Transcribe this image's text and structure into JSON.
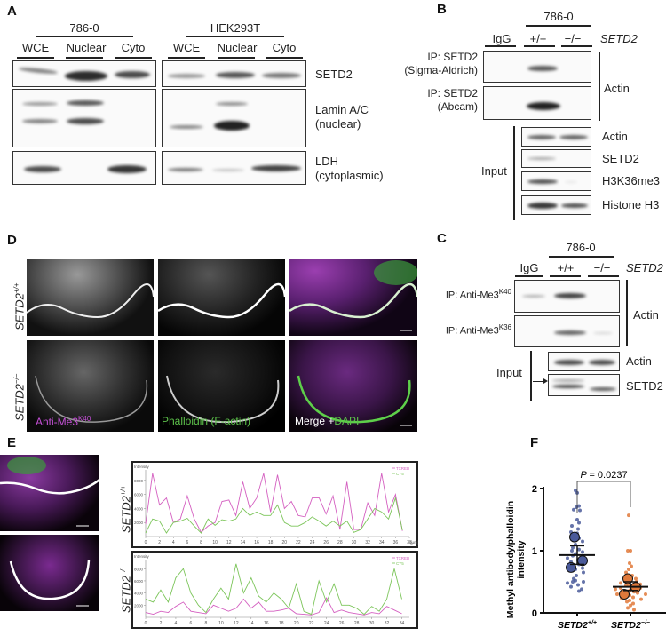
{
  "panelA": {
    "label": "A",
    "groups": [
      "786-0",
      "HEK293T"
    ],
    "lanes": [
      "WCE",
      "Nuclear",
      "Cyto"
    ],
    "rows": [
      {
        "l1": "SETD2",
        "l2": ""
      },
      {
        "l1": "Lamin A/C",
        "l2": "(nuclear)"
      },
      {
        "l1": "LDH",
        "l2": "(cytoplasmic)"
      }
    ]
  },
  "panelB": {
    "label": "B",
    "cell_line": "786-0",
    "lanes": [
      "IgG",
      "+/+",
      "−/−"
    ],
    "gene": "SETD2",
    "ip_rows": [
      {
        "l1": "IP: SETD2",
        "l2": "(Sigma-Aldrich)"
      },
      {
        "l1": "IP: SETD2",
        "l2": "(Abcam)"
      }
    ],
    "ip_blot": "Actin",
    "input_label": "Input",
    "input_rows": [
      "Actin",
      "SETD2",
      "H3K36me3",
      "Histone H3"
    ]
  },
  "panelC": {
    "label": "C",
    "cell_line": "786-0",
    "lanes": [
      "IgG",
      "+/+",
      "−/−"
    ],
    "gene": "SETD2",
    "ip_rows": [
      {
        "text": "IP: Anti-Me3",
        "sup": "K40"
      },
      {
        "text": "IP: Anti-Me3",
        "sup": "K36"
      }
    ],
    "ip_blot": "Actin",
    "input_label": "Input",
    "input_rows": [
      "Actin",
      "SETD2"
    ]
  },
  "panelD": {
    "label": "D",
    "rows": [
      {
        "gene": "SETD2",
        "genotype": "+/+"
      },
      {
        "gene": "SETD2",
        "genotype": "−/−"
      }
    ],
    "captions": {
      "methyl": {
        "text": "Anti-Me3",
        "sup": "K40",
        "color": "#c44fd6"
      },
      "phalloidin": {
        "text": "Phalloidin (F-actin)",
        "color": "#5cc04a"
      },
      "merge": {
        "text": "Merge +",
        "dapi": "DAPI",
        "dapi_color": "#5cc04a"
      }
    }
  },
  "panelE": {
    "label": "E",
    "rows": [
      {
        "gene": "SETD2",
        "genotype": "+/+"
      },
      {
        "gene": "SETD2",
        "genotype": "−/−"
      }
    ]
  },
  "panelF": {
    "label": "F"
  },
  "chart_data": [
    {
      "id": "E-top",
      "type": "line",
      "ylabel": "Intensity",
      "xunit": "(µm)",
      "xlim": [
        0,
        38
      ],
      "ylim": [
        0,
        9500
      ],
      "xticks": [
        0,
        2,
        4,
        6,
        8,
        10,
        12,
        14,
        16,
        18,
        20,
        22,
        24,
        26,
        28,
        30,
        32,
        34,
        36,
        38
      ],
      "yticks": [
        2000,
        4000,
        6000,
        8000
      ],
      "legend_position": "top-right",
      "x": [
        0,
        1,
        2,
        3,
        4,
        5,
        6,
        7,
        8,
        9,
        10,
        11,
        12,
        13,
        14,
        15,
        16,
        17,
        18,
        19,
        20,
        21,
        22,
        23,
        24,
        25,
        26,
        27,
        28,
        29,
        30,
        31,
        32,
        33,
        34,
        35,
        36,
        37
      ],
      "series": [
        {
          "name": "TXRED",
          "color": "#d45fc0",
          "values": [
            1800,
            9000,
            4500,
            5500,
            2000,
            2500,
            5800,
            2500,
            600,
            1500,
            2000,
            5000,
            5200,
            3000,
            7800,
            4000,
            5500,
            9000,
            3500,
            8800,
            4000,
            5000,
            3000,
            2800,
            5500,
            5500,
            3200,
            5800,
            1000,
            7800,
            1000,
            1000,
            4800,
            3000,
            9000,
            3500,
            6000,
            800
          ]
        },
        {
          "name": "CY5",
          "color": "#7cc55a",
          "values": [
            500,
            2500,
            2200,
            500,
            2000,
            2200,
            2600,
            1500,
            500,
            2500,
            1600,
            2400,
            2200,
            2500,
            4000,
            3000,
            3500,
            3000,
            3000,
            4500,
            2000,
            1500,
            1500,
            2000,
            2800,
            2200,
            1500,
            2200,
            1500,
            2200,
            600,
            1000,
            2500,
            4000,
            3500,
            2500,
            5500,
            900
          ]
        }
      ]
    },
    {
      "id": "E-bottom",
      "type": "line",
      "ylabel": "Intensity",
      "xlim": [
        0,
        35
      ],
      "ylim": [
        0,
        9500
      ],
      "xticks": [
        0,
        2,
        4,
        6,
        8,
        10,
        12,
        14,
        16,
        18,
        20,
        22,
        24,
        26,
        28,
        30,
        32,
        34
      ],
      "yticks": [
        2000,
        4000,
        6000,
        8000
      ],
      "legend_position": "top-right",
      "x": [
        0,
        1,
        2,
        3,
        4,
        5,
        6,
        7,
        8,
        9,
        10,
        11,
        12,
        13,
        14,
        15,
        16,
        17,
        18,
        19,
        20,
        21,
        22,
        23,
        24,
        25,
        26,
        27,
        28,
        29,
        30,
        31,
        32,
        33,
        34
      ],
      "series": [
        {
          "name": "TXRED",
          "color": "#d45fc0",
          "values": [
            800,
            500,
            1000,
            800,
            1800,
            2500,
            1000,
            800,
            600,
            2000,
            1500,
            1000,
            1500,
            3000,
            1500,
            2500,
            1000,
            1000,
            1200,
            1500,
            600,
            500,
            400,
            800,
            3200,
            800,
            1200,
            800,
            600,
            400,
            800,
            600,
            1800,
            1200,
            600
          ]
        },
        {
          "name": "CY5",
          "color": "#7cc55a",
          "values": [
            3000,
            2500,
            4500,
            2500,
            6500,
            8000,
            4000,
            2000,
            800,
            3000,
            4800,
            3000,
            8800,
            4000,
            6500,
            3500,
            2500,
            4000,
            3000,
            1500,
            5500,
            1000,
            500,
            6000,
            2500,
            5500,
            2000,
            2000,
            1500,
            500,
            1800,
            1000,
            3000,
            8000,
            3000
          ]
        }
      ]
    },
    {
      "id": "F",
      "type": "scatter",
      "ylabel": "Methyl antibody/phalloidin intensity",
      "ylim": [
        0,
        2
      ],
      "yticks": [
        0,
        1,
        2
      ],
      "categories": [
        {
          "gene": "SETD2",
          "genotype": "+/+",
          "color": "#4a5a9a",
          "points": [
            1.97,
            1.93,
            1.72,
            1.7,
            1.66,
            1.65,
            1.5,
            1.45,
            1.4,
            1.35,
            1.3,
            1.28,
            1.2,
            1.18,
            1.15,
            1.1,
            1.05,
            1.02,
            1.0,
            0.98,
            0.95,
            0.92,
            0.9,
            0.88,
            0.85,
            0.82,
            0.8,
            0.78,
            0.75,
            0.72,
            0.7,
            0.68,
            0.65,
            0.6,
            0.55,
            0.52,
            0.5,
            0.5,
            0.48,
            0.45,
            0.42,
            0.38,
            0.35
          ],
          "replicate_means": [
            1.22,
            0.84,
            0.73
          ],
          "mean": 0.93,
          "sem": [
            0.78,
            1.08
          ]
        },
        {
          "gene": "SETD2",
          "genotype": "−/−",
          "color": "#e0793a",
          "points": [
            1.57,
            1.0,
            1.0,
            0.8,
            0.75,
            0.7,
            0.65,
            0.6,
            0.58,
            0.55,
            0.52,
            0.5,
            0.5,
            0.48,
            0.46,
            0.45,
            0.44,
            0.42,
            0.4,
            0.4,
            0.38,
            0.37,
            0.35,
            0.34,
            0.33,
            0.32,
            0.3,
            0.3,
            0.28,
            0.27,
            0.25,
            0.24,
            0.22,
            0.2,
            0.18,
            0.15,
            0.12,
            0.08,
            0.05
          ],
          "replicate_means": [
            0.55,
            0.41,
            0.3
          ],
          "mean": 0.42,
          "sem": [
            0.36,
            0.5
          ]
        }
      ],
      "annotation": {
        "p_label": "P",
        "p_value": "= 0.0237"
      }
    }
  ]
}
